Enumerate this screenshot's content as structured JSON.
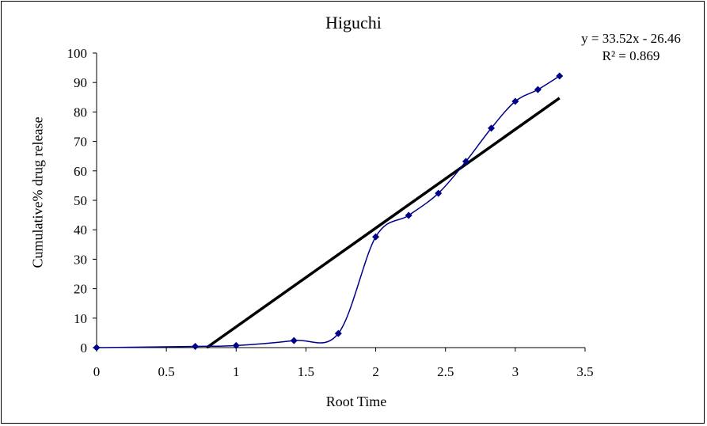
{
  "chart_data": {
    "type": "scatter",
    "title": "Higuchi",
    "xlabel": "Root Time",
    "ylabel": "Cumulative% drug release",
    "xlim": [
      0,
      3.5
    ],
    "ylim": [
      0,
      100
    ],
    "xticks": [
      "0",
      "0.5",
      "1",
      "1.5",
      "2",
      "2.5",
      "3",
      "3.5"
    ],
    "yticks": [
      "0",
      "10",
      "20",
      "30",
      "40",
      "50",
      "60",
      "70",
      "80",
      "90",
      "100"
    ],
    "grid": false,
    "series": [
      {
        "x": [
          0,
          0.707,
          1.0,
          1.414,
          1.732,
          2.0,
          2.236,
          2.449,
          2.646,
          2.828,
          3.0,
          3.162,
          3.317
        ],
        "y": [
          0,
          0.4,
          0.7,
          2.4,
          4.8,
          37.6,
          44.9,
          52.4,
          63.2,
          74.5,
          83.6,
          87.6,
          92.2
        ],
        "color": "#00008B",
        "marker": "diamond",
        "line": "smooth"
      }
    ],
    "trendline": {
      "slope": 33.52,
      "intercept": -26.46,
      "x_range": [
        0,
        3.317
      ],
      "color": "#000000",
      "equation_label": "y = 33.52x - 26.46",
      "r2_label": "R² = 0.869"
    }
  }
}
